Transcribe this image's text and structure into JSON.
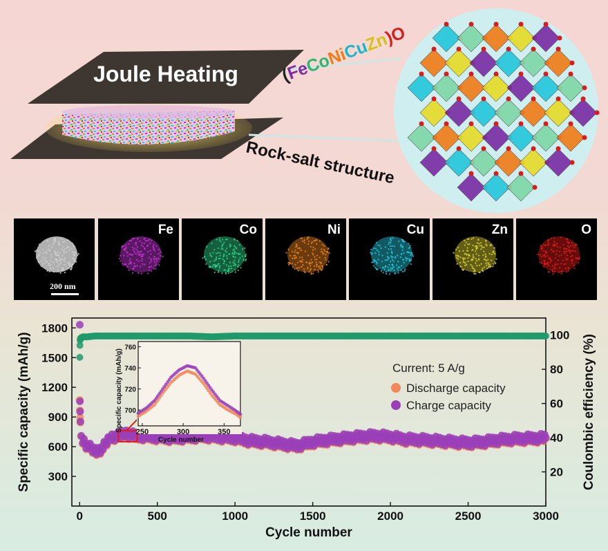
{
  "schematic": {
    "heater_label": "Joule Heating",
    "structure_label": "Rock-salt structure",
    "formula_parts": [
      {
        "text": "(",
        "color": "#222222"
      },
      {
        "text": "Fe",
        "color": "#7b2fa3"
      },
      {
        "text": "Co",
        "color": "#2bb673"
      },
      {
        "text": "Ni",
        "color": "#f07d1a"
      },
      {
        "text": "Cu",
        "color": "#18b7c9"
      },
      {
        "text": "Zn",
        "color": "#d6c21a"
      },
      {
        "text": ")O",
        "color": "#d41f1f"
      }
    ]
  },
  "eds": {
    "scale_label": "200 nm",
    "maps": [
      {
        "element": "",
        "color": "#cfcfcf"
      },
      {
        "element": "Fe",
        "color": "#c535d6"
      },
      {
        "element": "Co",
        "color": "#2fd38a"
      },
      {
        "element": "Ni",
        "color": "#e8831f"
      },
      {
        "element": "Cu",
        "color": "#27c8dc"
      },
      {
        "element": "Zn",
        "color": "#d8cf34"
      },
      {
        "element": "O",
        "color": "#e01c1c"
      }
    ]
  },
  "chart_data": {
    "type": "scatter",
    "xlabel": "Cycle number",
    "ylabel": "Specific capacity (mAh/g)",
    "y2label": "Coulombic efficiency (%)",
    "xlim": [
      -50,
      3000
    ],
    "ylim": [
      0,
      1900
    ],
    "y2lim": [
      0,
      110
    ],
    "xticks": [
      0,
      500,
      1000,
      1500,
      2000,
      2500,
      3000
    ],
    "yticks": [
      300,
      600,
      900,
      1200,
      1500,
      1800
    ],
    "y2ticks": [
      20,
      40,
      60,
      80,
      100
    ],
    "legend_title": "Current: 5 A/g",
    "legend_position": "center-right",
    "series": [
      {
        "name": "Discharge capacity",
        "color": "#f08a5d",
        "x": [
          1,
          2,
          3,
          5,
          10,
          20,
          50,
          100,
          150,
          200,
          250,
          300,
          350,
          400,
          500,
          600,
          700,
          800,
          900,
          1000,
          1100,
          1200,
          1300,
          1400,
          1500,
          1600,
          1700,
          1800,
          1900,
          2000,
          2100,
          2200,
          2300,
          2400,
          2500,
          2600,
          2700,
          2800,
          2900,
          3000
        ],
        "y": [
          1030,
          960,
          920,
          810,
          700,
          660,
          600,
          540,
          580,
          690,
          700,
          725,
          700,
          700,
          690,
          680,
          690,
          700,
          690,
          680,
          650,
          640,
          620,
          600,
          640,
          660,
          675,
          690,
          700,
          690,
          665,
          660,
          650,
          640,
          630,
          640,
          660,
          670,
          675,
          680
        ]
      },
      {
        "name": "Charge capacity",
        "color": "#9a3fb8",
        "x": [
          1,
          2,
          3,
          5,
          10,
          20,
          50,
          100,
          150,
          200,
          250,
          300,
          350,
          400,
          500,
          600,
          700,
          800,
          900,
          1000,
          1100,
          1200,
          1300,
          1400,
          1500,
          1600,
          1700,
          1800,
          1900,
          2000,
          2100,
          2200,
          2300,
          2400,
          2500,
          2600,
          2700,
          2800,
          2900,
          3000
        ],
        "y": [
          1790,
          1050,
          980,
          820,
          710,
          670,
          610,
          550,
          590,
          700,
          710,
          740,
          710,
          710,
          700,
          690,
          700,
          710,
          700,
          690,
          660,
          650,
          630,
          610,
          650,
          670,
          685,
          700,
          710,
          700,
          675,
          670,
          660,
          650,
          640,
          650,
          670,
          680,
          685,
          690
        ]
      },
      {
        "name": "",
        "axis": "right",
        "color": "#1f9a6b",
        "x": [
          1,
          2,
          3,
          5,
          10,
          20,
          50,
          100,
          200,
          300,
          500,
          700,
          850,
          1000,
          1500,
          2000,
          2500,
          3000
        ],
        "y": [
          87,
          94,
          97,
          98,
          98.5,
          99,
          99,
          99.5,
          99.5,
          99.5,
          99.5,
          99.5,
          99,
          99.5,
          99.5,
          99.5,
          99.5,
          99.5
        ]
      }
    ],
    "inset": {
      "xlabel": "Cycle number",
      "ylabel": "Specific capacity (mAh/g)",
      "xlim": [
        245,
        370
      ],
      "ylim": [
        685,
        765
      ],
      "xticks": [
        250,
        300,
        350
      ],
      "yticks": [
        700,
        720,
        740,
        760
      ],
      "series": [
        {
          "name": "Discharge capacity",
          "color": "#f08a5d",
          "x": [
            245,
            255,
            265,
            275,
            285,
            295,
            305,
            315,
            325,
            335,
            345,
            355,
            365,
            370
          ],
          "y": [
            694,
            699,
            705,
            716,
            726,
            733,
            737,
            734,
            725,
            714,
            705,
            700,
            696,
            693
          ]
        },
        {
          "name": "Charge capacity",
          "color": "#9a3fb8",
          "x": [
            245,
            255,
            265,
            275,
            285,
            295,
            305,
            315,
            325,
            335,
            345,
            355,
            365,
            370
          ],
          "y": [
            697,
            702,
            709,
            720,
            731,
            738,
            742,
            740,
            730,
            719,
            709,
            704,
            699,
            696
          ]
        }
      ]
    }
  }
}
